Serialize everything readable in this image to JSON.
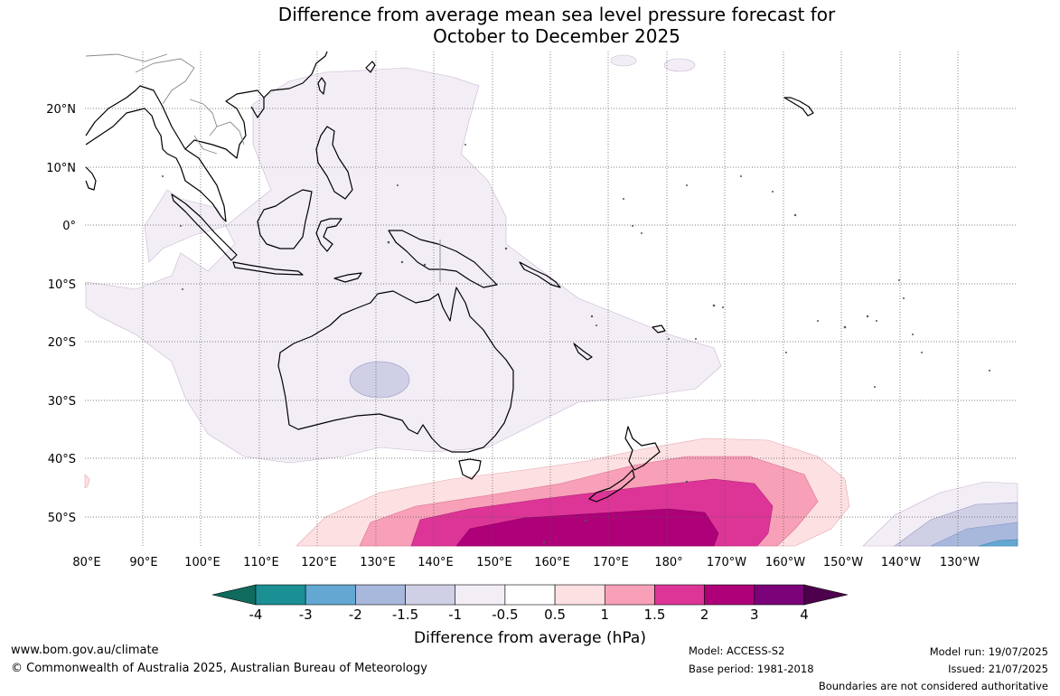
{
  "title_line1": "Difference from average mean sea level pressure forecast for",
  "title_line2": "October to December 2025",
  "lat_labels": [
    "20°N",
    "10°N",
    "0°",
    "10°S",
    "20°S",
    "30°S",
    "40°S",
    "50°S"
  ],
  "lon_labels": [
    "80°E",
    "90°E",
    "100°E",
    "110°E",
    "120°E",
    "130°E",
    "140°E",
    "150°E",
    "160°E",
    "170°E",
    "180°",
    "170°W",
    "160°W",
    "150°W",
    "140°W",
    "130°W"
  ],
  "colorbar": {
    "title": "Difference from average (hPa)",
    "labels": [
      "-4",
      "-3",
      "-2",
      "-1.5",
      "-1",
      "-0.5",
      "0.5",
      "1",
      "1.5",
      "2",
      "3",
      "4"
    ],
    "colors": [
      "#0f6b5e",
      "#1a8f94",
      "#62a8d2",
      "#a8b8dc",
      "#cfcfe6",
      "#f3eef6",
      "#ffffff",
      "#fde0e2",
      "#f7a0b8",
      "#dd3597",
      "#ad0079",
      "#7a0177",
      "#4d004b"
    ]
  },
  "footer": {
    "website": "www.bom.gov.au/climate",
    "copyright": "© Commonwealth of Australia 2025, Australian Bureau of Meteorology",
    "model": "Model: ACCESS-S2",
    "base_period": "Base period: 1981-2018",
    "model_run": "Model run: 19/07/2025",
    "issued": "Issued: 21/07/2025",
    "disclaimer": "Boundaries are not considered authoritative"
  }
}
